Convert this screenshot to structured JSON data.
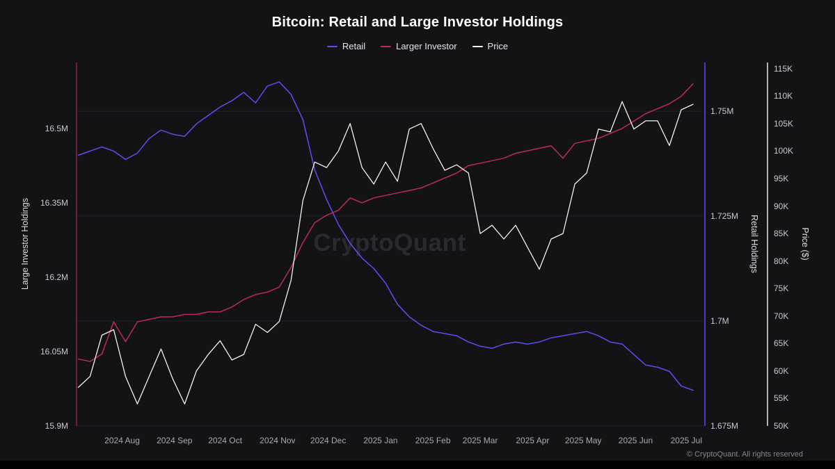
{
  "footer": "© CryptoQuant. All rights reserved",
  "chart_data": {
    "type": "line",
    "title": "Bitcoin: Retail and Large Investor Holdings",
    "watermark": "CryptoQuant",
    "legend_position": "top",
    "colors": {
      "background": "#131316",
      "title_text": "#ffffff",
      "tick_label": "#c9c9ce",
      "x_tick_label": "#a8a8af",
      "gridline": "#212126",
      "bottom_bar": "#000000",
      "footer_text": "#85858b"
    },
    "x_range": {
      "start": "2024-07-05",
      "end": "2025-07-12"
    },
    "x_ticks": [
      {
        "label": "2024 Aug",
        "date": "2024-08-01"
      },
      {
        "label": "2024 Sep",
        "date": "2024-09-01"
      },
      {
        "label": "2024 Oct",
        "date": "2024-10-01"
      },
      {
        "label": "2024 Nov",
        "date": "2024-11-01"
      },
      {
        "label": "2024 Dec",
        "date": "2024-12-01"
      },
      {
        "label": "2025 Jan",
        "date": "2025-01-01"
      },
      {
        "label": "2025 Feb",
        "date": "2025-02-01"
      },
      {
        "label": "2025 Mar",
        "date": "2025-03-01"
      },
      {
        "label": "2025 Apr",
        "date": "2025-04-01"
      },
      {
        "label": "2025 May",
        "date": "2025-05-01"
      },
      {
        "label": "2025 Jun",
        "date": "2025-06-01"
      },
      {
        "label": "2025 Jul",
        "date": "2025-07-01"
      }
    ],
    "axes": {
      "large": {
        "title": "Large Investor Holdings",
        "side": "left",
        "min": 15.9,
        "max": 16.633,
        "line_color": "#8f2150",
        "ticks": [
          {
            "value": 16.5,
            "label": "16.5M"
          },
          {
            "value": 16.35,
            "label": "16.35M"
          },
          {
            "value": 16.2,
            "label": "16.2M"
          },
          {
            "value": 16.05,
            "label": "16.05M"
          },
          {
            "value": 15.9,
            "label": "15.9M"
          }
        ]
      },
      "retail": {
        "title": "Retail Holdings",
        "side": "right",
        "min": 1.675,
        "max": 1.7616,
        "line_color": "#5a50f0",
        "ticks": [
          {
            "value": 1.75,
            "label": "1.75M"
          },
          {
            "value": 1.725,
            "label": "1.725M"
          },
          {
            "value": 1.7,
            "label": "1.7M"
          },
          {
            "value": 1.675,
            "label": "1.675M"
          }
        ]
      },
      "price": {
        "title": "Price ($)",
        "side": "far_right",
        "min": 50,
        "max": 116.1,
        "line_color": "#e9e9ec",
        "ticks": [
          {
            "value": 115,
            "label": "115K"
          },
          {
            "value": 110,
            "label": "110K"
          },
          {
            "value": 105,
            "label": "105K"
          },
          {
            "value": 100,
            "label": "100K"
          },
          {
            "value": 95,
            "label": "95K"
          },
          {
            "value": 90,
            "label": "90K"
          },
          {
            "value": 85,
            "label": "85K"
          },
          {
            "value": 80,
            "label": "80K"
          },
          {
            "value": 75,
            "label": "75K"
          },
          {
            "value": 70,
            "label": "70K"
          },
          {
            "value": 65,
            "label": "65K"
          },
          {
            "value": 60,
            "label": "60K"
          },
          {
            "value": 55,
            "label": "55K"
          },
          {
            "value": 50,
            "label": "50K"
          }
        ]
      }
    },
    "gridlines": {
      "axis": "retail",
      "color": "#212126"
    },
    "x_dates": [
      "2024-07-06",
      "2024-07-13",
      "2024-07-20",
      "2024-07-27",
      "2024-08-03",
      "2024-08-10",
      "2024-08-17",
      "2024-08-24",
      "2024-08-31",
      "2024-09-07",
      "2024-09-14",
      "2024-09-21",
      "2024-09-28",
      "2024-10-05",
      "2024-10-12",
      "2024-10-19",
      "2024-10-26",
      "2024-11-02",
      "2024-11-09",
      "2024-11-16",
      "2024-11-23",
      "2024-11-30",
      "2024-12-07",
      "2024-12-14",
      "2024-12-21",
      "2024-12-28",
      "2025-01-04",
      "2025-01-11",
      "2025-01-18",
      "2025-01-25",
      "2025-02-01",
      "2025-02-08",
      "2025-02-15",
      "2025-02-22",
      "2025-03-01",
      "2025-03-08",
      "2025-03-15",
      "2025-03-22",
      "2025-03-29",
      "2025-04-05",
      "2025-04-12",
      "2025-04-19",
      "2025-04-26",
      "2025-05-03",
      "2025-05-10",
      "2025-05-17",
      "2025-05-24",
      "2025-05-31",
      "2025-06-07",
      "2025-06-14",
      "2025-06-21",
      "2025-06-28",
      "2025-07-05"
    ],
    "series": [
      {
        "name": "Retail",
        "axis": "retail",
        "color": "#5a50f0",
        "width": 1.5,
        "values": [
          1.7395,
          1.7405,
          1.7415,
          1.7405,
          1.7385,
          1.74,
          1.7435,
          1.7455,
          1.7445,
          1.744,
          1.747,
          1.749,
          1.751,
          1.7525,
          1.7545,
          1.752,
          1.756,
          1.757,
          1.754,
          1.748,
          1.736,
          1.729,
          1.723,
          1.7185,
          1.715,
          1.7125,
          1.709,
          1.704,
          1.701,
          1.699,
          1.6975,
          1.697,
          1.6965,
          1.695,
          1.694,
          1.6935,
          1.6945,
          1.695,
          1.6945,
          1.695,
          1.696,
          1.6965,
          1.697,
          1.6975,
          1.6965,
          1.695,
          1.6945,
          1.692,
          1.6895,
          1.689,
          1.688,
          1.6845,
          1.6835
        ]
      },
      {
        "name": "Larger Investor",
        "axis": "large",
        "color": "#bd2a5e",
        "width": 1.5,
        "values": [
          16.035,
          16.03,
          16.045,
          16.11,
          16.07,
          16.11,
          16.115,
          16.12,
          16.12,
          16.125,
          16.125,
          16.13,
          16.13,
          16.14,
          16.155,
          16.165,
          16.17,
          16.18,
          16.22,
          16.27,
          16.31,
          16.325,
          16.335,
          16.36,
          16.35,
          16.36,
          16.365,
          16.37,
          16.375,
          16.38,
          16.39,
          16.4,
          16.41,
          16.425,
          16.43,
          16.435,
          16.44,
          16.45,
          16.455,
          16.46,
          16.465,
          16.44,
          16.47,
          16.475,
          16.48,
          16.49,
          16.5,
          16.515,
          16.53,
          16.54,
          16.55,
          16.565,
          16.59
        ]
      },
      {
        "name": "Price",
        "axis": "price",
        "color": "#f3f3f4",
        "width": 1.3,
        "values": [
          57,
          59,
          66.5,
          67.5,
          59,
          54,
          59,
          64,
          58.5,
          54,
          60,
          63,
          65.5,
          62,
          63,
          68.5,
          67,
          69,
          76.5,
          91,
          98,
          97,
          100,
          105,
          97,
          94,
          98,
          94.5,
          104,
          105,
          100.5,
          96.5,
          97.5,
          96,
          85,
          86.5,
          84,
          86.5,
          82.5,
          78.5,
          84,
          85,
          94,
          96,
          104,
          103.5,
          109,
          104,
          105.5,
          105.5,
          101,
          107.5,
          108.5
        ]
      }
    ]
  }
}
